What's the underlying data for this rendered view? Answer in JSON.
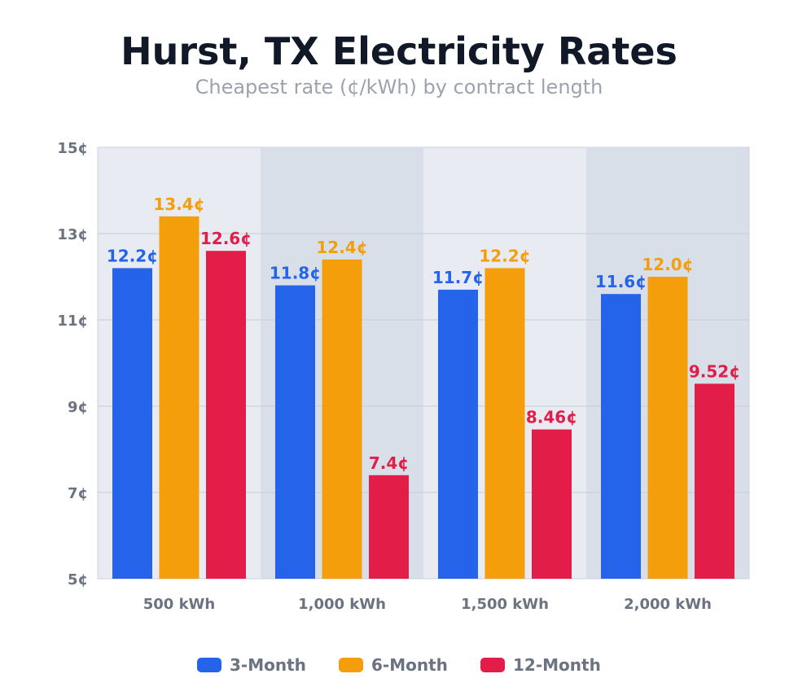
{
  "chart_data": {
    "type": "bar",
    "title": "Hurst, TX Electricity Rates",
    "subtitle": "Cheapest rate (¢/kWh) by contract length",
    "xlabel": "",
    "ylabel": "",
    "categories": [
      "500 kWh",
      "1,000 kWh",
      "1,500 kWh",
      "2,000 kWh"
    ],
    "series": [
      {
        "name": "3-Month",
        "color": "#2563eb",
        "values": [
          12.2,
          11.8,
          11.7,
          11.6
        ],
        "labels": [
          "12.2¢",
          "11.8¢",
          "11.7¢",
          "11.6¢"
        ]
      },
      {
        "name": "6-Month",
        "color": "#f59e0b",
        "values": [
          13.4,
          12.4,
          12.2,
          12.0
        ],
        "labels": [
          "13.4¢",
          "12.4¢",
          "12.2¢",
          "12.0¢"
        ]
      },
      {
        "name": "12-Month",
        "color": "#e11d48",
        "values": [
          12.6,
          7.4,
          8.46,
          9.52
        ],
        "labels": [
          "12.6¢",
          "7.4¢",
          "8.46¢",
          "9.52¢"
        ]
      }
    ],
    "ylim": [
      5,
      15
    ],
    "yticks": [
      5,
      7,
      9,
      11,
      13,
      15
    ],
    "ytick_labels": [
      "5¢",
      "7¢",
      "9¢",
      "11¢",
      "13¢",
      "15¢"
    ],
    "grid": true,
    "legend_position": "bottom-center"
  }
}
